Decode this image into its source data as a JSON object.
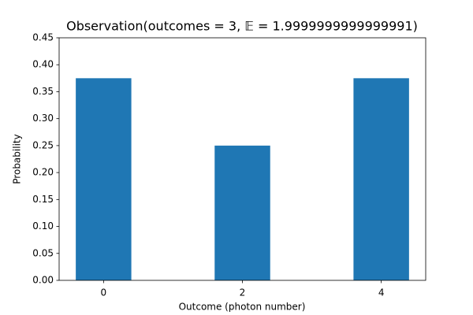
{
  "chart_data": {
    "type": "bar",
    "title": "Observation(outcomes = 3,  𝔼 = 1.9999999999999991)",
    "xlabel": "Outcome (photon number)",
    "ylabel": "Probability",
    "x": [
      0,
      2,
      4
    ],
    "values": [
      0.375,
      0.25,
      0.375
    ],
    "color": "#1f77b4",
    "xlim": [
      -0.64,
      4.64
    ],
    "xticks": [
      0,
      2,
      4
    ],
    "ylim": [
      0,
      0.45
    ],
    "yticks": [
      {
        "value": 0,
        "label": "0.00"
      },
      {
        "value": 0.05,
        "label": "0.05"
      },
      {
        "value": 0.1,
        "label": "0.10"
      },
      {
        "value": 0.15,
        "label": "0.15"
      },
      {
        "value": 0.2,
        "label": "0.20"
      },
      {
        "value": 0.25,
        "label": "0.25"
      },
      {
        "value": 0.3,
        "label": "0.30"
      },
      {
        "value": 0.35,
        "label": "0.35"
      },
      {
        "value": 0.4,
        "label": "0.40"
      },
      {
        "value": 0.45,
        "label": "0.45"
      }
    ]
  }
}
